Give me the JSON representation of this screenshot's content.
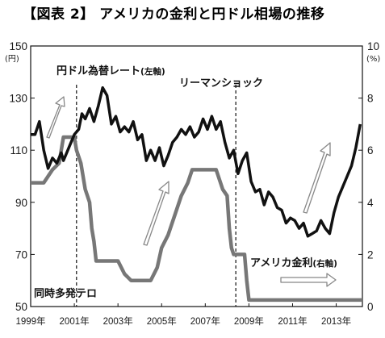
{
  "chart_data": {
    "type": "line",
    "title": "【図表 2】 アメリカの金利と円ドル相場の推移",
    "left_axis": {
      "unit": "(円)",
      "ticks": [
        "150",
        "130",
        "110",
        "90",
        "70",
        "50"
      ],
      "ylim": [
        50,
        150
      ]
    },
    "right_axis": {
      "unit": "(%)",
      "ticks": [
        "10",
        "8",
        "6",
        "4",
        "2",
        "0"
      ],
      "ylim": [
        0,
        10
      ]
    },
    "x_ticks": [
      "1999年",
      "2001年",
      "2003年",
      "2005年",
      "2007年",
      "2009年",
      "2011年",
      "2013年"
    ],
    "xlim": [
      1999.0,
      2014.2
    ],
    "series": [
      {
        "name": "円ドル為替レート",
        "axis_label": "(左軸)",
        "color": "#111111",
        "x": [
          1999.0,
          1999.2,
          1999.4,
          1999.6,
          1999.8,
          2000.0,
          2000.2,
          2000.4,
          2000.5,
          2000.6,
          2000.8,
          2001.0,
          2001.2,
          2001.35,
          2001.5,
          2001.7,
          2001.9,
          2002.1,
          2002.3,
          2002.5,
          2002.7,
          2002.9,
          2003.1,
          2003.3,
          2003.5,
          2003.7,
          2003.9,
          2004.1,
          2004.3,
          2004.5,
          2004.7,
          2004.9,
          2005.1,
          2005.3,
          2005.5,
          2005.7,
          2005.9,
          2006.1,
          2006.3,
          2006.5,
          2006.7,
          2006.9,
          2007.1,
          2007.3,
          2007.5,
          2007.7,
          2007.9,
          2008.1,
          2008.3,
          2008.5,
          2008.7,
          2008.9,
          2009.1,
          2009.3,
          2009.5,
          2009.7,
          2009.9,
          2010.1,
          2010.3,
          2010.5,
          2010.7,
          2010.9,
          2011.1,
          2011.3,
          2011.5,
          2011.7,
          2011.9,
          2012.1,
          2012.3,
          2012.5,
          2012.7,
          2012.9,
          2013.1,
          2013.3,
          2013.5,
          2013.7,
          2013.9,
          2014.1
        ],
        "values": [
          116,
          116,
          121,
          110,
          103,
          107,
          105,
          109,
          106,
          108,
          112,
          116,
          118,
          124,
          122,
          126,
          121,
          127,
          134,
          131,
          120,
          123,
          117,
          119,
          117,
          121,
          114,
          116,
          106,
          110,
          106,
          111,
          104,
          108,
          113,
          115,
          118,
          116,
          119,
          115,
          117,
          122,
          118,
          123,
          118,
          121,
          113,
          107,
          110,
          101,
          106,
          109,
          98,
          94,
          95,
          89,
          94,
          92,
          88,
          87,
          82,
          84,
          83,
          80,
          82,
          77,
          78,
          79,
          83,
          80,
          78,
          86,
          92,
          96,
          100,
          104,
          111,
          120
        ]
      },
      {
        "name": "アメリカ金利",
        "axis_label": "(右軸)",
        "color": "#777777",
        "x": [
          1999.0,
          1999.4,
          1999.6,
          1999.8,
          2000.0,
          2000.3,
          2000.5,
          2000.8,
          2001.0,
          2001.1,
          2001.3,
          2001.5,
          2001.7,
          2001.8,
          2001.9,
          2002.0,
          2002.8,
          2003.0,
          2003.3,
          2003.6,
          2004.0,
          2004.5,
          2004.8,
          2005.0,
          2005.3,
          2005.6,
          2005.9,
          2006.2,
          2006.4,
          2006.5,
          2007.0,
          2007.5,
          2007.7,
          2007.8,
          2008.0,
          2008.1,
          2008.2,
          2008.3,
          2008.6,
          2008.8,
          2008.9,
          2009.0,
          2014.2
        ],
        "values": [
          4.75,
          4.75,
          4.75,
          5.0,
          5.25,
          5.5,
          6.5,
          6.5,
          6.5,
          6.0,
          5.5,
          4.5,
          4.0,
          3.0,
          2.5,
          1.75,
          1.75,
          1.75,
          1.25,
          1.0,
          1.0,
          1.0,
          1.5,
          2.25,
          2.75,
          3.5,
          4.25,
          4.75,
          5.25,
          5.25,
          5.25,
          5.25,
          4.75,
          4.5,
          4.25,
          3.0,
          2.25,
          2.0,
          2.0,
          2.0,
          1.0,
          0.25,
          0.25
        ]
      }
    ],
    "annotations": {
      "lehman": "リーマンショック",
      "terror": "同時多発テロ"
    },
    "event_lines": [
      2001.1,
      2008.4
    ],
    "grid": false,
    "legend": "inline labels"
  }
}
